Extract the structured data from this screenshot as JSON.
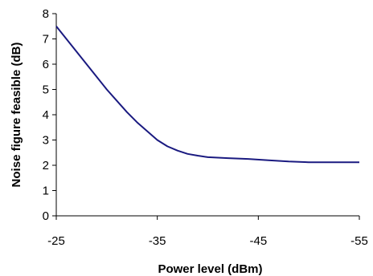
{
  "chart_data": {
    "type": "line",
    "title": "",
    "xlabel": "Power level (dBm)",
    "ylabel": "Noise figure feasible (dB)",
    "xlim": [
      -25,
      -55
    ],
    "ylim": [
      0,
      8
    ],
    "x_axis_reversed": true,
    "grid": false,
    "legend": "none",
    "x_ticks": [
      -25,
      -35,
      -45,
      -55
    ],
    "y_ticks": [
      0,
      1,
      2,
      3,
      4,
      5,
      6,
      7,
      8
    ],
    "series": [
      {
        "color": "#1a1a80",
        "points": [
          [
            -25,
            7.5
          ],
          [
            -26,
            7.0
          ],
          [
            -27,
            6.5
          ],
          [
            -28,
            6.0
          ],
          [
            -29,
            5.5
          ],
          [
            -30,
            5.0
          ],
          [
            -31,
            4.55
          ],
          [
            -32,
            4.1
          ],
          [
            -33,
            3.7
          ],
          [
            -34,
            3.35
          ],
          [
            -35,
            3.0
          ],
          [
            -36,
            2.75
          ],
          [
            -37,
            2.58
          ],
          [
            -38,
            2.45
          ],
          [
            -39,
            2.38
          ],
          [
            -40,
            2.32
          ],
          [
            -42,
            2.28
          ],
          [
            -44,
            2.25
          ],
          [
            -46,
            2.2
          ],
          [
            -48,
            2.15
          ],
          [
            -50,
            2.12
          ],
          [
            -52,
            2.12
          ],
          [
            -55,
            2.12
          ]
        ]
      }
    ]
  }
}
